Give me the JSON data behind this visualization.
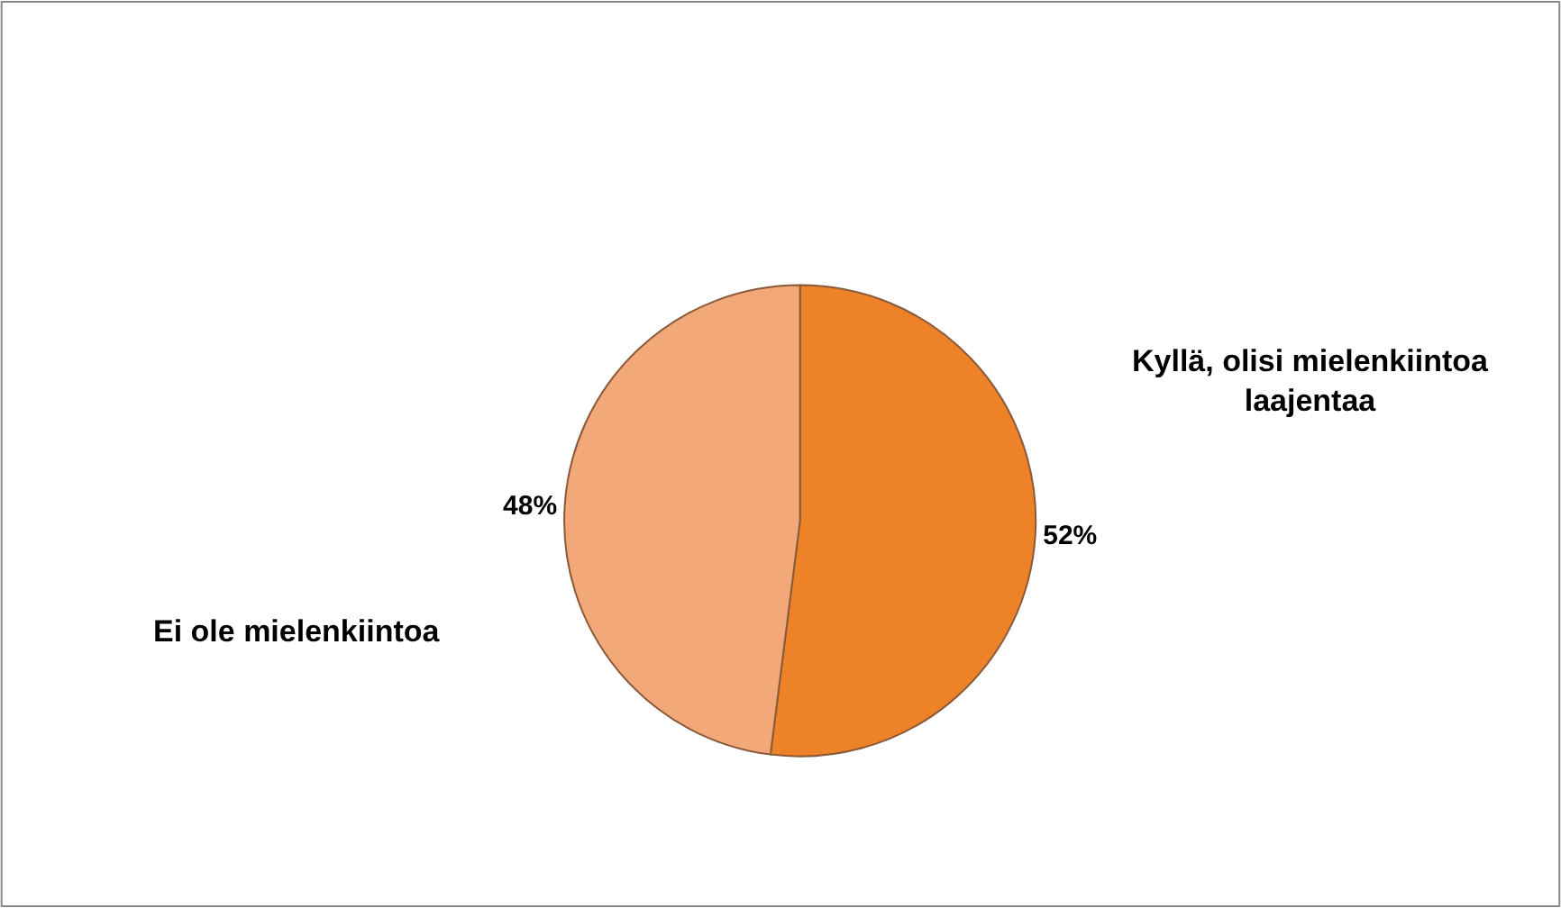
{
  "chart_data": {
    "type": "pie",
    "categories": [
      "Kyllä, olisi mielenkiintoa laajentaa",
      "Ei ole mielenkiintoa"
    ],
    "values": [
      52,
      48
    ],
    "value_labels": [
      "52%",
      "48%"
    ],
    "colors": [
      "#ee8228",
      "#f2a878"
    ],
    "legend": false
  }
}
